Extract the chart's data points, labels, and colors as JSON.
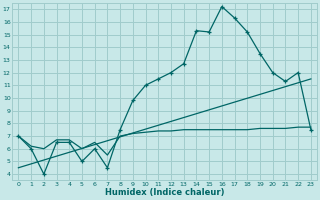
{
  "bg_color": "#c8e8e8",
  "line_color": "#006666",
  "grid_color": "#a0cccc",
  "xlabel": "Humidex (Indice chaleur)",
  "xlim": [
    -0.5,
    23.5
  ],
  "ylim": [
    3.5,
    17.5
  ],
  "xticks": [
    0,
    1,
    2,
    3,
    4,
    5,
    6,
    7,
    8,
    9,
    10,
    11,
    12,
    13,
    14,
    15,
    16,
    17,
    18,
    19,
    20,
    21,
    22,
    23
  ],
  "yticks": [
    4,
    5,
    6,
    7,
    8,
    9,
    10,
    11,
    12,
    13,
    14,
    15,
    16,
    17
  ],
  "line1_x": [
    0,
    1,
    2,
    3,
    4,
    5,
    6,
    7,
    8,
    9,
    10,
    11,
    12,
    13,
    14,
    15,
    16,
    17,
    18,
    19,
    20,
    21,
    22,
    23
  ],
  "line1_y": [
    7.0,
    6.0,
    4.0,
    6.5,
    6.5,
    5.0,
    6.0,
    4.5,
    7.5,
    9.8,
    11.0,
    11.5,
    12.0,
    12.7,
    15.3,
    15.2,
    17.2,
    16.3,
    15.2,
    13.5,
    12.0,
    11.3,
    12.0,
    7.5
  ],
  "line2_x": [
    0,
    23
  ],
  "line2_y": [
    4.5,
    11.5
  ],
  "line3_x": [
    0,
    1,
    2,
    3,
    4,
    5,
    6,
    7,
    8,
    9,
    10,
    11,
    12,
    13,
    14,
    15,
    16,
    17,
    18,
    19,
    20,
    21,
    22,
    23
  ],
  "line3_y": [
    7.0,
    6.2,
    6.0,
    6.7,
    6.7,
    6.0,
    6.5,
    5.5,
    7.0,
    7.2,
    7.3,
    7.4,
    7.4,
    7.5,
    7.5,
    7.5,
    7.5,
    7.5,
    7.5,
    7.6,
    7.6,
    7.6,
    7.7,
    7.7
  ]
}
